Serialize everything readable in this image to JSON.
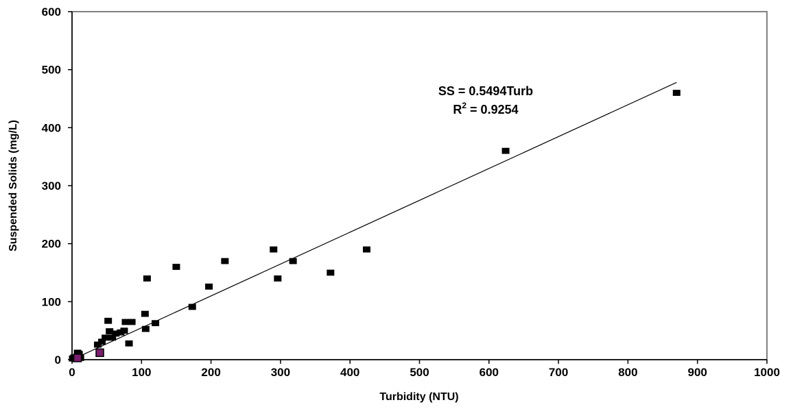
{
  "chart_data": {
    "type": "scatter",
    "title": "",
    "xlabel": "Turbidity (NTU)",
    "ylabel": "Suspended Solids (mg/L)",
    "xlim": [
      0,
      1000
    ],
    "ylim": [
      0,
      600
    ],
    "xticks": [
      0,
      100,
      200,
      300,
      400,
      500,
      600,
      700,
      800,
      900,
      1000
    ],
    "yticks": [
      0,
      100,
      200,
      300,
      400,
      500,
      600
    ],
    "grid": false,
    "legend": "none",
    "marker_color": "#000000",
    "highlight_color": "#7a1f6e",
    "series": [
      {
        "points": [
          [
            1,
            2
          ],
          [
            3,
            4
          ],
          [
            5,
            1
          ],
          [
            8,
            12
          ],
          [
            10,
            10
          ],
          [
            12,
            3
          ],
          [
            37,
            26
          ],
          [
            43,
            31
          ],
          [
            48,
            38
          ],
          [
            52,
            67
          ],
          [
            54,
            49
          ],
          [
            58,
            38
          ],
          [
            63,
            45
          ],
          [
            70,
            47
          ],
          [
            75,
            50
          ],
          [
            77,
            65
          ],
          [
            82,
            28
          ],
          [
            86,
            65
          ],
          [
            105,
            79
          ],
          [
            106,
            53
          ],
          [
            108,
            140
          ],
          [
            120,
            63
          ],
          [
            150,
            160
          ],
          [
            173,
            91
          ],
          [
            197,
            126
          ],
          [
            220,
            170
          ],
          [
            290,
            190
          ],
          [
            296,
            140
          ],
          [
            318,
            170
          ],
          [
            372,
            150
          ],
          [
            424,
            190
          ],
          [
            624,
            360
          ],
          [
            870,
            460
          ]
        ]
      },
      {
        "points": [
          [
            8,
            3
          ],
          [
            40,
            12
          ]
        ]
      }
    ],
    "trendline": {
      "slope": 0.5494,
      "x_range": [
        0,
        870
      ],
      "equation": "SS = 0.5494Turb",
      "r2_prefix": "R",
      "r2_sup": "2",
      "r2_value": " = 0.9254"
    }
  }
}
